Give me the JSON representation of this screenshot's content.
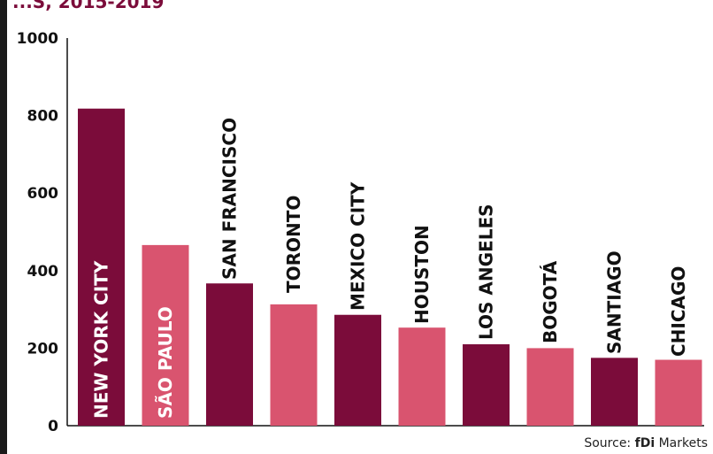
{
  "header": {
    "title_fragment": "...S, 2015-2019"
  },
  "source": {
    "prefix": "Source:",
    "brand": "fDi",
    "suffix": "Markets"
  },
  "colors": {
    "dark": "#7b0c3a",
    "light": "#d9546f"
  },
  "chart_data": {
    "type": "bar",
    "categories": [
      "NEW YORK CITY",
      "SÃO PAULO",
      "SAN FRANCISCO",
      "TORONTO",
      "MEXICO CITY",
      "HOUSTON",
      "LOS ANGELES",
      "BOGOTÁ",
      "SANTIAGO",
      "CHICAGO"
    ],
    "values": [
      818,
      466,
      367,
      313,
      286,
      253,
      210,
      200,
      175,
      170
    ],
    "bar_colors": [
      "dark",
      "light",
      "dark",
      "light",
      "dark",
      "light",
      "dark",
      "light",
      "dark",
      "light"
    ],
    "yticks": [
      0,
      200,
      400,
      600,
      800,
      1000
    ],
    "ylim": [
      0,
      1000
    ],
    "grid": false,
    "legend": "none"
  }
}
